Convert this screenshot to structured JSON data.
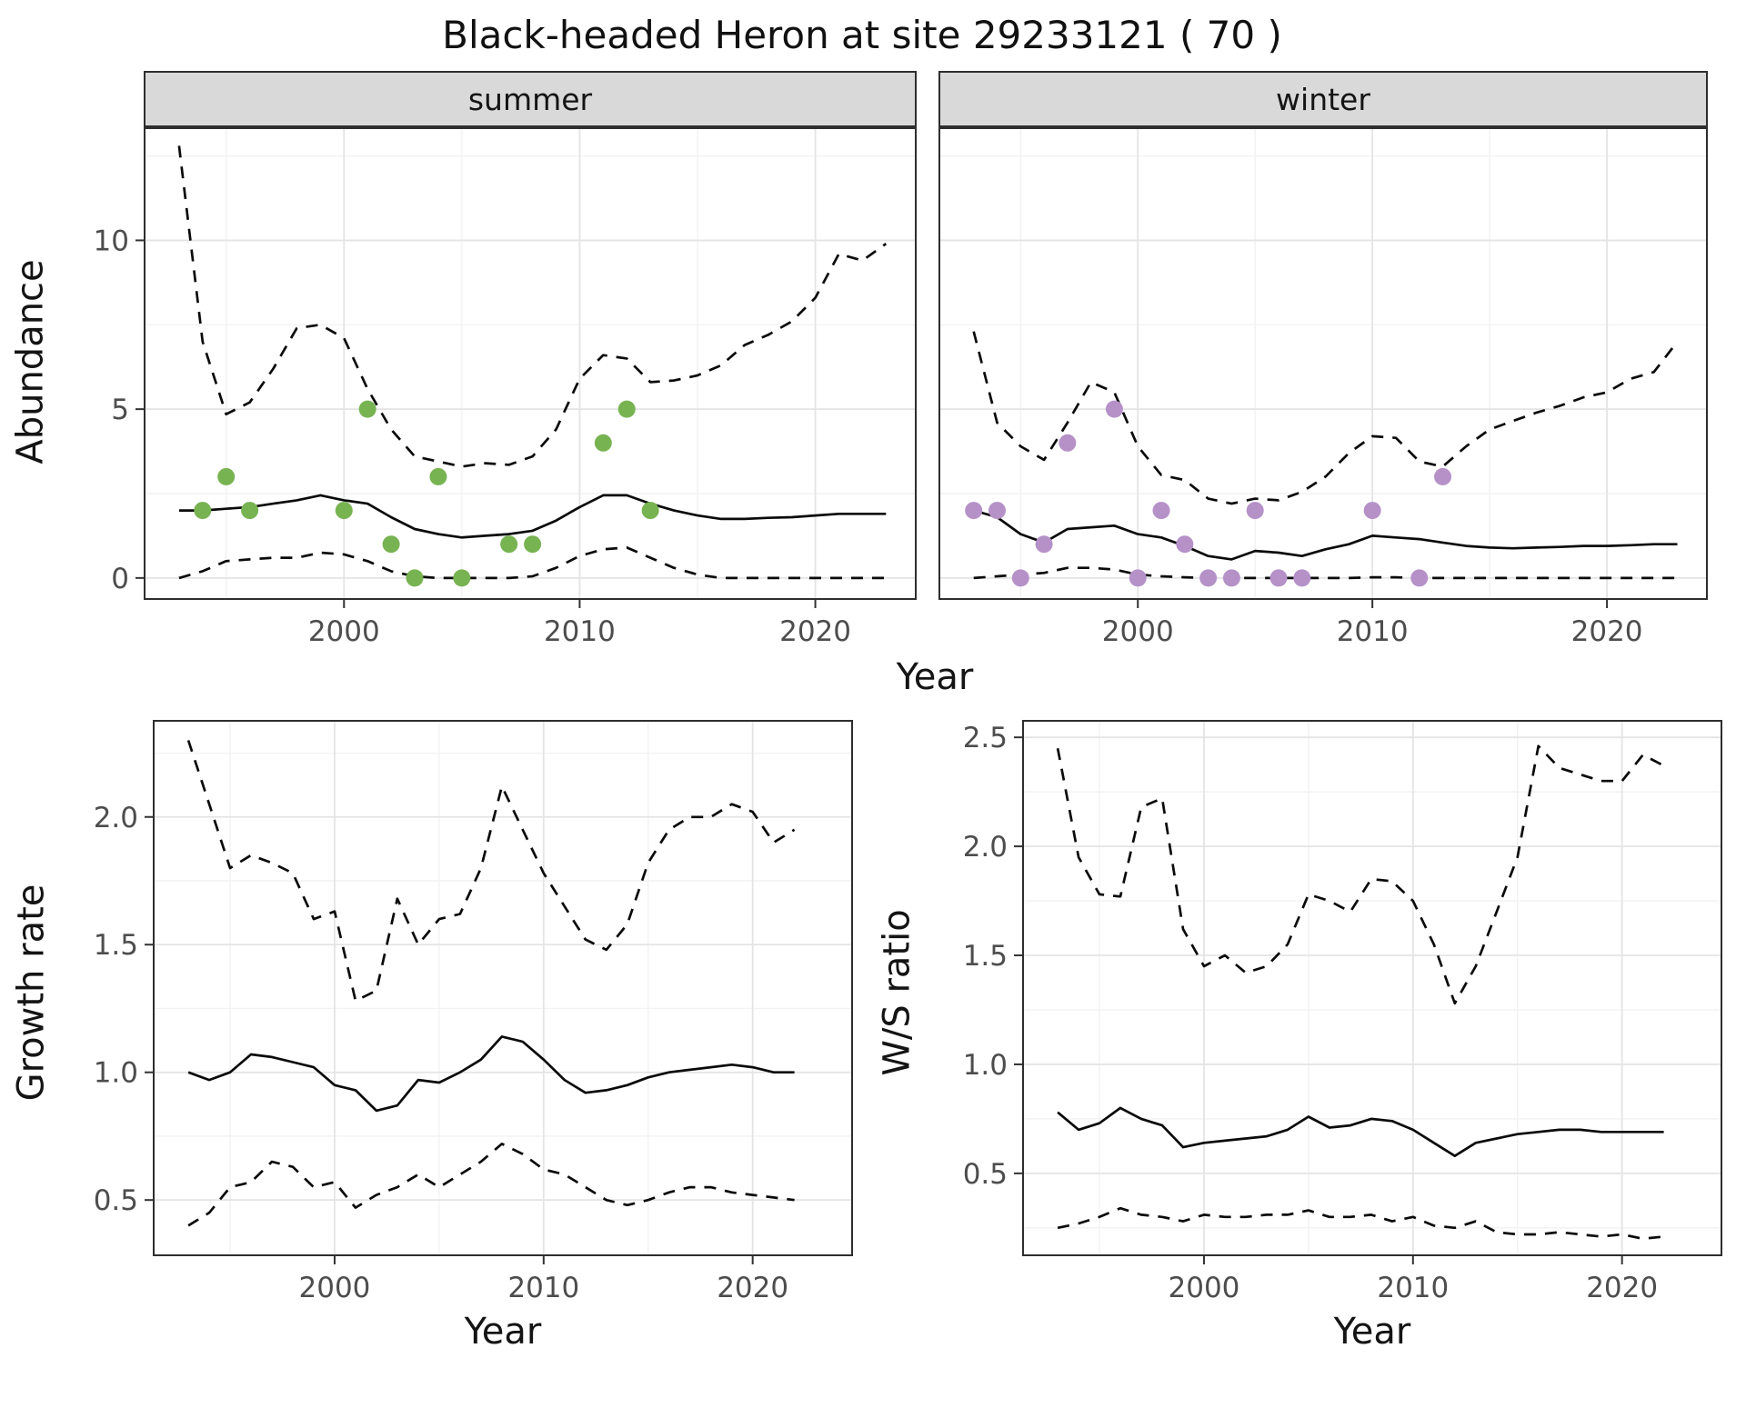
{
  "title": "Black-headed Heron at site 29233121 ( 70 )",
  "colors": {
    "summer_points": "#78b352",
    "winter_points": "#b591c8",
    "line": "#0a0a0a",
    "strip_background": "#d9d9d9"
  },
  "chart_data": [
    {
      "id": "abundance-summer",
      "type": "line",
      "facet": "summer",
      "ylabel": "Abundance",
      "xlabel": "Year",
      "legend": "none",
      "grid": true,
      "xlim": [
        1991.5,
        2024.3
      ],
      "ylim": [
        -0.65,
        13.35
      ],
      "x_ticks": [
        2000,
        2010,
        2020
      ],
      "x_tick_labels": [
        "2000",
        "2010",
        "2020"
      ],
      "x_minor_ticks": [
        1995,
        2005,
        2015
      ],
      "y_ticks": [
        0,
        5,
        10
      ],
      "y_tick_labels": [
        "0",
        "5",
        "10"
      ],
      "y_minor_ticks": [
        2.5,
        7.5,
        12.5
      ],
      "years": [
        1993,
        1994,
        1995,
        1996,
        1997,
        1998,
        1999,
        2000,
        2001,
        2002,
        2003,
        2004,
        2005,
        2006,
        2007,
        2008,
        2009,
        2010,
        2011,
        2012,
        2013,
        2014,
        2015,
        2016,
        2017,
        2018,
        2019,
        2020,
        2021,
        2022,
        2023
      ],
      "series": [
        {
          "name": "ci_upper",
          "style": "dashed",
          "y": [
            12.8,
            7.0,
            4.85,
            5.2,
            6.2,
            7.4,
            7.5,
            7.1,
            5.6,
            4.4,
            3.6,
            3.45,
            3.3,
            3.4,
            3.35,
            3.6,
            4.4,
            5.9,
            6.6,
            6.5,
            5.8,
            5.85,
            6.0,
            6.3,
            6.9,
            7.2,
            7.6,
            8.3,
            9.6,
            9.4,
            9.9
          ]
        },
        {
          "name": "ci_lower",
          "style": "dashed",
          "y": [
            0.0,
            0.2,
            0.5,
            0.55,
            0.6,
            0.6,
            0.75,
            0.7,
            0.5,
            0.2,
            0.05,
            0.0,
            0.0,
            0.0,
            0.0,
            0.05,
            0.3,
            0.65,
            0.85,
            0.9,
            0.6,
            0.3,
            0.1,
            0.0,
            0.0,
            0.0,
            0.0,
            0.0,
            0.0,
            0.0,
            0.0
          ]
        },
        {
          "name": "median",
          "style": "solid",
          "y": [
            2.0,
            2.0,
            2.05,
            2.1,
            2.2,
            2.3,
            2.45,
            2.3,
            2.2,
            1.8,
            1.45,
            1.3,
            1.2,
            1.25,
            1.3,
            1.4,
            1.7,
            2.1,
            2.45,
            2.45,
            2.2,
            2.0,
            1.85,
            1.75,
            1.75,
            1.78,
            1.8,
            1.85,
            1.9,
            1.9,
            1.9
          ]
        },
        {
          "name": "observed_counts",
          "style": "points",
          "color": "#78b352",
          "x": [
            1994,
            1995,
            1996,
            2000,
            2001,
            2002,
            2003,
            2004,
            2005,
            2007,
            2008,
            2011,
            2012,
            2013
          ],
          "y": [
            2,
            3,
            2,
            2,
            5,
            1,
            0,
            3,
            0,
            1,
            1,
            4,
            5,
            2
          ]
        }
      ]
    },
    {
      "id": "abundance-winter",
      "type": "line",
      "facet": "winter",
      "ylabel": "Abundance",
      "xlabel": "Year",
      "legend": "none",
      "grid": true,
      "xlim": [
        1991.5,
        2024.3
      ],
      "ylim": [
        -0.65,
        13.35
      ],
      "x_ticks": [
        2000,
        2010,
        2020
      ],
      "x_tick_labels": [
        "2000",
        "2010",
        "2020"
      ],
      "x_minor_ticks": [
        1995,
        2005,
        2015
      ],
      "y_ticks": [
        0,
        5,
        10
      ],
      "y_tick_labels": [
        "0",
        "5",
        "10"
      ],
      "y_minor_ticks": [
        2.5,
        7.5,
        12.5
      ],
      "years": [
        1993,
        1994,
        1995,
        1996,
        1997,
        1998,
        1999,
        2000,
        2001,
        2002,
        2003,
        2004,
        2005,
        2006,
        2007,
        2008,
        2009,
        2010,
        2011,
        2012,
        2013,
        2014,
        2015,
        2016,
        2017,
        2018,
        2019,
        2020,
        2021,
        2022,
        2023
      ],
      "series": [
        {
          "name": "ci_upper",
          "style": "dashed",
          "y": [
            7.3,
            4.6,
            3.9,
            3.5,
            4.6,
            5.8,
            5.5,
            3.9,
            3.05,
            2.9,
            2.35,
            2.2,
            2.35,
            2.3,
            2.55,
            3.0,
            3.7,
            4.2,
            4.15,
            3.45,
            3.3,
            3.9,
            4.4,
            4.65,
            4.9,
            5.1,
            5.35,
            5.5,
            5.9,
            6.1,
            7.0
          ]
        },
        {
          "name": "ci_lower",
          "style": "dashed",
          "y": [
            0.0,
            0.05,
            0.1,
            0.15,
            0.3,
            0.3,
            0.25,
            0.1,
            0.05,
            0.02,
            0.0,
            0.0,
            0.0,
            0.0,
            0.0,
            0.0,
            0.0,
            0.02,
            0.02,
            0.0,
            0.0,
            0.0,
            0.0,
            0.0,
            0.0,
            0.0,
            0.0,
            0.0,
            0.0,
            0.0,
            0.0
          ]
        },
        {
          "name": "median",
          "style": "solid",
          "y": [
            2.0,
            1.8,
            1.3,
            1.05,
            1.45,
            1.5,
            1.55,
            1.3,
            1.2,
            0.95,
            0.65,
            0.55,
            0.8,
            0.75,
            0.65,
            0.85,
            1.0,
            1.25,
            1.2,
            1.15,
            1.05,
            0.95,
            0.9,
            0.88,
            0.9,
            0.92,
            0.95,
            0.95,
            0.97,
            1.0,
            1.0
          ]
        },
        {
          "name": "observed_counts",
          "style": "points",
          "color": "#b591c8",
          "x": [
            1993,
            1994,
            1995,
            1996,
            1997,
            1999,
            2000,
            2001,
            2002,
            2003,
            2004,
            2005,
            2006,
            2007,
            2010,
            2012,
            2013
          ],
          "y": [
            2,
            2,
            0,
            1,
            4,
            5,
            0,
            2,
            1,
            0,
            0,
            2,
            0,
            0,
            2,
            0,
            3
          ]
        }
      ]
    },
    {
      "id": "growth-rate",
      "type": "line",
      "facet": "",
      "ylabel": "Growth rate",
      "xlabel": "Year",
      "legend": "none",
      "grid": true,
      "xlim": [
        1991.3,
        2024.8
      ],
      "ylim": [
        0.28,
        2.38
      ],
      "x_ticks": [
        2000,
        2010,
        2020
      ],
      "x_tick_labels": [
        "2000",
        "2010",
        "2020"
      ],
      "x_minor_ticks": [
        1995,
        2005,
        2015
      ],
      "y_ticks": [
        0.5,
        1.0,
        1.5,
        2.0
      ],
      "y_tick_labels": [
        "0.5",
        "1.0",
        "1.5",
        "2.0"
      ],
      "y_minor_ticks": [
        0.75,
        1.25,
        1.75,
        2.25
      ],
      "years": [
        1993,
        1994,
        1995,
        1996,
        1997,
        1998,
        1999,
        2000,
        2001,
        2002,
        2003,
        2004,
        2005,
        2006,
        2007,
        2008,
        2009,
        2010,
        2011,
        2012,
        2013,
        2014,
        2015,
        2016,
        2017,
        2018,
        2019,
        2020,
        2021,
        2022
      ],
      "series": [
        {
          "name": "ci_upper",
          "style": "dashed",
          "y": [
            2.3,
            2.05,
            1.8,
            1.85,
            1.82,
            1.78,
            1.6,
            1.63,
            1.28,
            1.32,
            1.68,
            1.5,
            1.6,
            1.62,
            1.8,
            2.12,
            1.95,
            1.78,
            1.65,
            1.52,
            1.48,
            1.58,
            1.82,
            1.95,
            2.0,
            2.0,
            2.05,
            2.02,
            1.9,
            1.95
          ]
        },
        {
          "name": "ci_lower",
          "style": "dashed",
          "y": [
            0.4,
            0.45,
            0.55,
            0.57,
            0.65,
            0.63,
            0.55,
            0.57,
            0.47,
            0.52,
            0.55,
            0.6,
            0.55,
            0.6,
            0.65,
            0.72,
            0.68,
            0.62,
            0.6,
            0.55,
            0.5,
            0.48,
            0.5,
            0.53,
            0.55,
            0.55,
            0.53,
            0.52,
            0.51,
            0.5
          ]
        },
        {
          "name": "median",
          "style": "solid",
          "y": [
            1.0,
            0.97,
            1.0,
            1.07,
            1.06,
            1.04,
            1.02,
            0.95,
            0.93,
            0.85,
            0.87,
            0.97,
            0.96,
            1.0,
            1.05,
            1.14,
            1.12,
            1.05,
            0.97,
            0.92,
            0.93,
            0.95,
            0.98,
            1.0,
            1.01,
            1.02,
            1.03,
            1.02,
            1.0,
            1.0
          ]
        }
      ]
    },
    {
      "id": "ws-ratio",
      "type": "line",
      "facet": "",
      "ylabel": "W/S ratio",
      "xlabel": "Year",
      "legend": "none",
      "grid": true,
      "xlim": [
        1991.3,
        2024.8
      ],
      "ylim": [
        0.12,
        2.58
      ],
      "x_ticks": [
        2000,
        2010,
        2020
      ],
      "x_tick_labels": [
        "2000",
        "2010",
        "2020"
      ],
      "x_minor_ticks": [
        1995,
        2005,
        2015
      ],
      "y_ticks": [
        0.5,
        1.0,
        1.5,
        2.0,
        2.5
      ],
      "y_tick_labels": [
        "0.5",
        "1.0",
        "1.5",
        "2.0",
        "2.5"
      ],
      "y_minor_ticks": [
        0.25,
        0.75,
        1.25,
        1.75,
        2.25
      ],
      "years": [
        1993,
        1994,
        1995,
        1996,
        1997,
        1998,
        1999,
        2000,
        2001,
        2002,
        2003,
        2004,
        2005,
        2006,
        2007,
        2008,
        2009,
        2010,
        2011,
        2012,
        2013,
        2014,
        2015,
        2016,
        2017,
        2018,
        2019,
        2020,
        2021,
        2022
      ],
      "series": [
        {
          "name": "ci_upper",
          "style": "dashed",
          "y": [
            2.45,
            1.95,
            1.78,
            1.77,
            2.18,
            2.22,
            1.62,
            1.45,
            1.5,
            1.42,
            1.45,
            1.55,
            1.78,
            1.75,
            1.7,
            1.85,
            1.84,
            1.75,
            1.55,
            1.28,
            1.45,
            1.7,
            1.95,
            2.46,
            2.36,
            2.33,
            2.3,
            2.3,
            2.42,
            2.37
          ]
        },
        {
          "name": "ci_lower",
          "style": "dashed",
          "y": [
            0.25,
            0.27,
            0.3,
            0.34,
            0.31,
            0.3,
            0.28,
            0.31,
            0.3,
            0.3,
            0.31,
            0.31,
            0.33,
            0.3,
            0.3,
            0.31,
            0.28,
            0.3,
            0.26,
            0.25,
            0.28,
            0.23,
            0.22,
            0.22,
            0.23,
            0.22,
            0.21,
            0.22,
            0.2,
            0.21
          ]
        },
        {
          "name": "median",
          "style": "solid",
          "y": [
            0.78,
            0.7,
            0.73,
            0.8,
            0.75,
            0.72,
            0.62,
            0.64,
            0.65,
            0.66,
            0.67,
            0.7,
            0.76,
            0.71,
            0.72,
            0.75,
            0.74,
            0.7,
            0.64,
            0.58,
            0.64,
            0.66,
            0.68,
            0.69,
            0.7,
            0.7,
            0.69,
            0.69,
            0.69,
            0.69
          ]
        }
      ]
    }
  ]
}
